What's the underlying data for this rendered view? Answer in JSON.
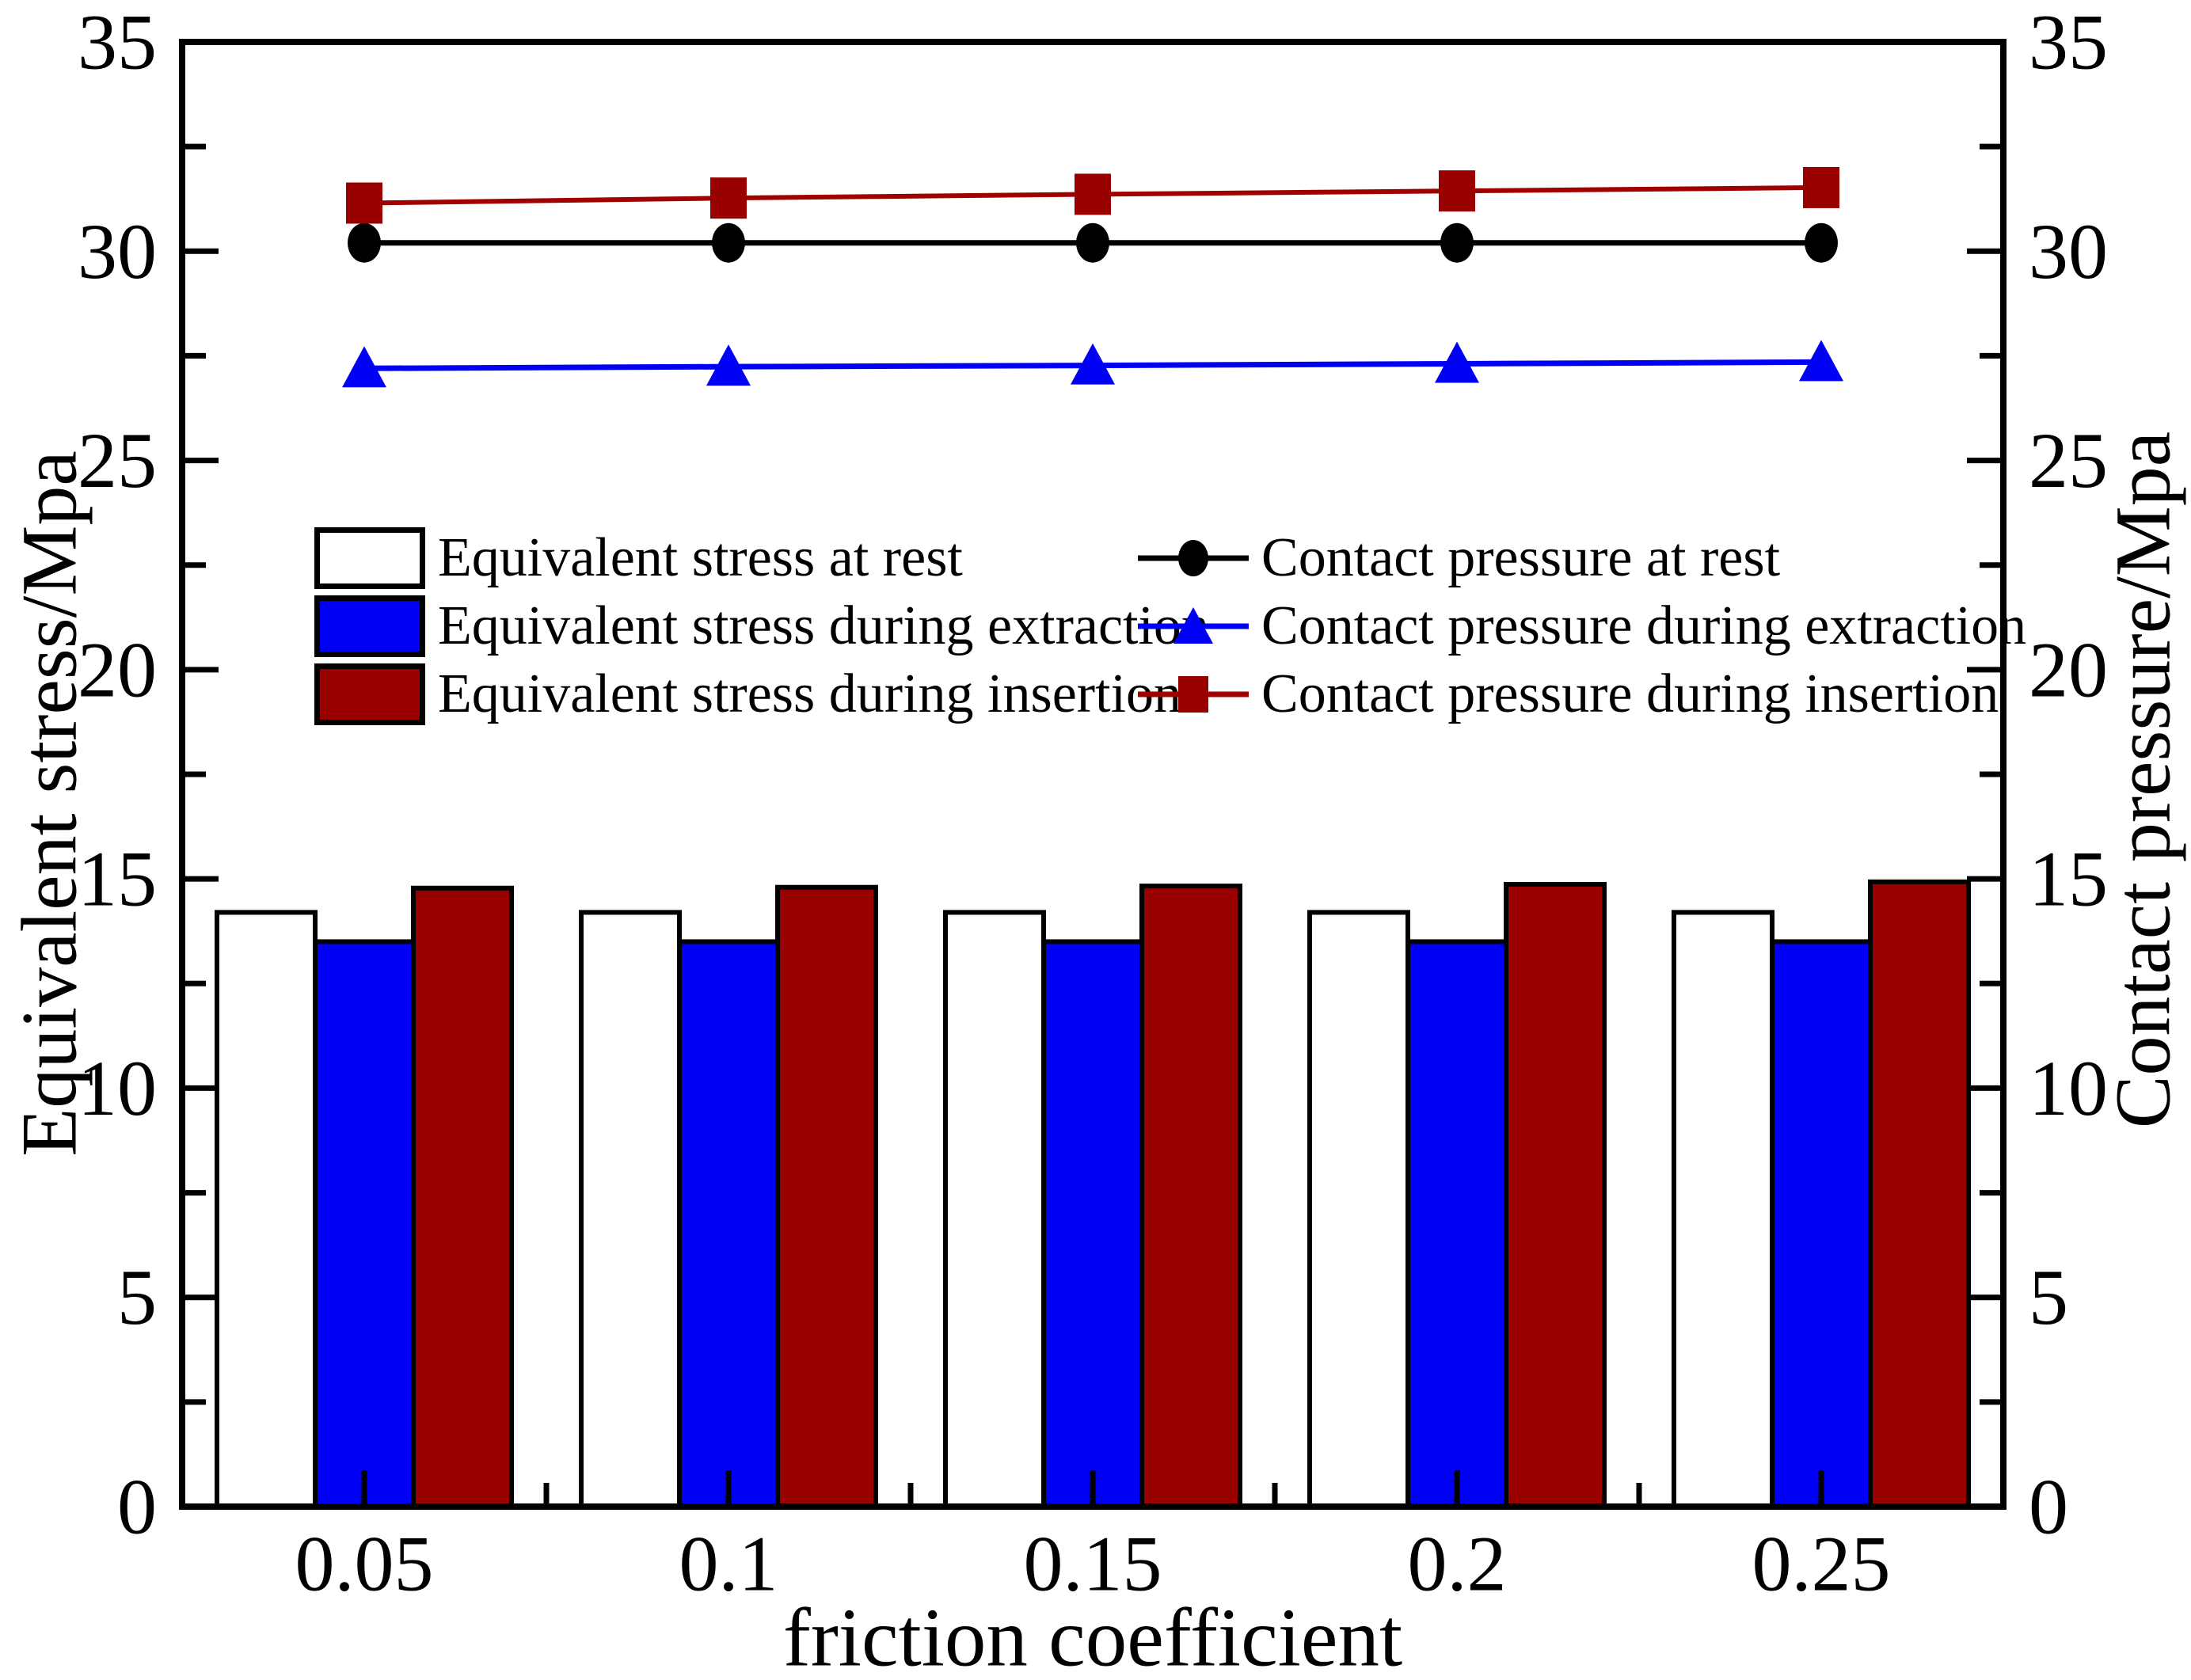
{
  "figure": {
    "background": "#ffffff"
  },
  "axes": {
    "x": {
      "label": "friction coefficient",
      "tick_labels": [
        "0.05",
        "0.1",
        "0.15",
        "0.2",
        "0.25"
      ]
    },
    "y_left": {
      "label": "Equivalent stress/Mpa",
      "min": 0,
      "max": 35,
      "major_ticks": [
        0,
        5,
        10,
        15,
        20,
        25,
        30,
        35
      ],
      "minor_tick_step": 2.5
    },
    "y_right": {
      "label": "Contact pressure/Mpa",
      "min": 0,
      "max": 35,
      "major_ticks": [
        0,
        5,
        10,
        15,
        20,
        25,
        30,
        35
      ],
      "minor_tick_step": 2.5
    }
  },
  "legend": {
    "bars": [
      {
        "label": "Equivalent stress at rest",
        "color": "#ffffff"
      },
      {
        "label": "Equivalent stress during extraction",
        "color": "#0000f5"
      },
      {
        "label": "Equivalent stress during insertion",
        "color": "#990000"
      }
    ],
    "lines": [
      {
        "label": "Contact pressure at rest",
        "color": "#000000",
        "marker": "circle"
      },
      {
        "label": "Contact pressure during extraction",
        "color": "#0000f5",
        "marker": "triangle"
      },
      {
        "label": "Contact pressure during insertion",
        "color": "#a00000",
        "marker": "square"
      }
    ]
  },
  "chart_data": {
    "type": "bar",
    "subtype": "grouped-bars-with-lines-dual-axis",
    "title": "",
    "xlabel": "friction coefficient",
    "ylabel_left": "Equivalent stress/Mpa",
    "ylabel_right": "Contact pressure/Mpa",
    "ylim": [
      0,
      35
    ],
    "grid": false,
    "legend_position": "inside-upper-middle",
    "categories": [
      0.05,
      0.1,
      0.15,
      0.2,
      0.25
    ],
    "bar_series": [
      {
        "name": "Equivalent stress at rest",
        "axis": "left",
        "color": "#ffffff",
        "edge_color": "#000000",
        "values": [
          14.2,
          14.2,
          14.2,
          14.2,
          14.2
        ]
      },
      {
        "name": "Equivalent stress during extraction",
        "axis": "left",
        "color": "#0000f5",
        "edge_color": "#000000",
        "values": [
          13.5,
          13.5,
          13.5,
          13.5,
          13.5
        ]
      },
      {
        "name": "Equivalent stress during insertion",
        "axis": "left",
        "color": "#990000",
        "edge_color": "#000000",
        "values": [
          14.78,
          14.8,
          14.83,
          14.87,
          14.93
        ]
      }
    ],
    "line_series": [
      {
        "name": "Contact pressure at rest",
        "axis": "right",
        "color": "#000000",
        "marker": "circle",
        "values": [
          30.2,
          30.2,
          30.2,
          30.2,
          30.2
        ]
      },
      {
        "name": "Contact pressure during extraction",
        "axis": "right",
        "color": "#0000f5",
        "marker": "triangle",
        "values": [
          27.2,
          27.24,
          27.27,
          27.31,
          27.35
        ]
      },
      {
        "name": "Contact pressure during insertion",
        "axis": "right",
        "color": "#a00000",
        "marker": "square",
        "values": [
          31.15,
          31.27,
          31.36,
          31.44,
          31.52
        ]
      }
    ]
  }
}
